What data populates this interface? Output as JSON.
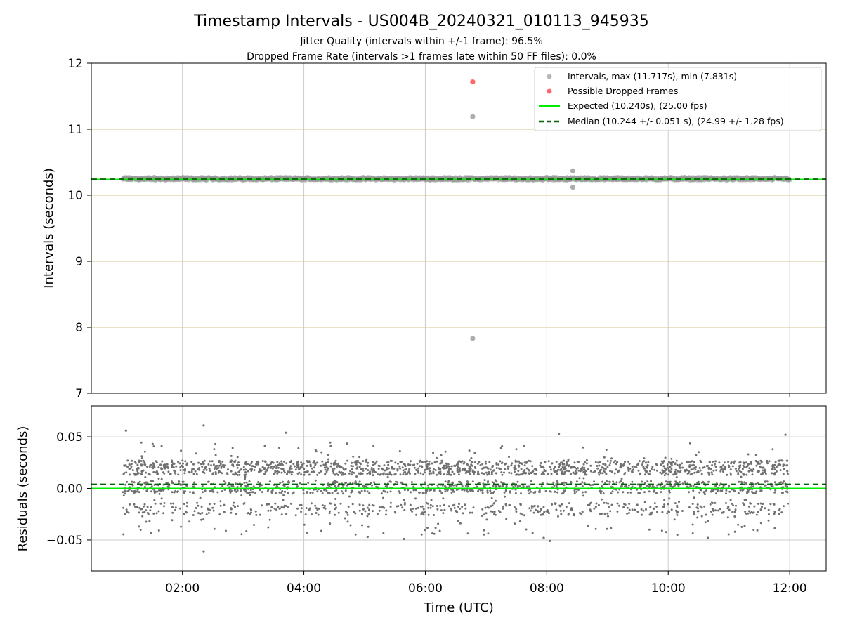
{
  "title": "Timestamp Intervals - US004B_20240321_010113_945935",
  "subtitle_lines": [
    "Jitter Quality (intervals within +/-1 frame): 96.5%",
    "Dropped Frame Rate (intervals >1 frames late within 50 FF files): 0.0%"
  ],
  "colors": {
    "interval_points": "#999999",
    "dropped_points": "#ff4d4d",
    "expected_line": "#00ee00",
    "median_line": "#006400",
    "residual_points": "#707070",
    "hgrid_top": "#d6c58a",
    "grid": "#cccccc"
  },
  "chart_data": [
    {
      "type": "scatter",
      "name": "intervals",
      "ylabel": "Intervals (seconds)",
      "ylim": [
        7,
        12
      ],
      "yticks": [
        "7",
        "8",
        "9",
        "10",
        "11",
        "12"
      ],
      "xlim_hours": [
        0.5,
        12.6
      ],
      "xticks_hours": [
        2,
        4,
        6,
        8,
        10,
        12
      ],
      "grid": true,
      "legend_position": "upper right",
      "legend": [
        "Intervals, max (11.717s), min (7.831s)",
        "Possible Dropped Frames",
        "Expected (10.240s), (25.00 fps)",
        "Median (10.244 +/- 0.051 s), (24.99 +/- 1.28 fps)"
      ],
      "expected_value": 10.24,
      "median_value": 10.244,
      "series": [
        {
          "name": "Intervals, max (11.717s), min (7.831s)",
          "time_range_hours": [
            1.02,
            12.0
          ],
          "typical_values": [
            10.24,
            10.245,
            10.26
          ],
          "outliers": [
            {
              "x_hours": 6.78,
              "y": 11.19
            },
            {
              "x_hours": 6.78,
              "y": 7.831
            },
            {
              "x_hours": 8.43,
              "y": 10.37
            },
            {
              "x_hours": 8.43,
              "y": 10.12
            }
          ]
        },
        {
          "name": "Possible Dropped Frames",
          "points": [
            {
              "x_hours": 6.78,
              "y": 11.717
            }
          ]
        }
      ]
    },
    {
      "type": "scatter",
      "name": "residuals",
      "xlabel": "Time (UTC)",
      "ylabel": "Residuals (seconds)",
      "ylim": [
        -0.08,
        0.08
      ],
      "yticks": [
        {
          "value": 0.05,
          "label": "0.05"
        },
        {
          "value": 0.0,
          "label": "0.00"
        },
        {
          "value": -0.05,
          "label": "−0.05"
        }
      ],
      "xlim_hours": [
        0.5,
        12.6
      ],
      "xticks": [
        {
          "hours": 2,
          "label": "02:00"
        },
        {
          "hours": 4,
          "label": "04:00"
        },
        {
          "hours": 6,
          "label": "06:00"
        },
        {
          "hours": 8,
          "label": "08:00"
        },
        {
          "hours": 10,
          "label": "10:00"
        },
        {
          "hours": 12,
          "label": "12:00"
        }
      ],
      "grid": true,
      "expected_residual": 0.0,
      "median_residual": 0.004,
      "residual_clusters": [
        0.02,
        0.001,
        -0.02
      ],
      "extreme_points": [
        {
          "x_hours": 2.35,
          "y": -0.061
        },
        {
          "x_hours": 2.35,
          "y": 0.061
        },
        {
          "x_hours": 1.07,
          "y": 0.056
        },
        {
          "x_hours": 8.05,
          "y": -0.051
        },
        {
          "x_hours": 5.05,
          "y": -0.047
        },
        {
          "x_hours": 5.65,
          "y": -0.049
        },
        {
          "x_hours": 7.95,
          "y": -0.048
        },
        {
          "x_hours": 10.15,
          "y": -0.045
        },
        {
          "x_hours": 10.65,
          "y": -0.048
        },
        {
          "x_hours": 11.1,
          "y": -0.042
        },
        {
          "x_hours": 8.2,
          "y": 0.053
        },
        {
          "x_hours": 3.7,
          "y": 0.054
        },
        {
          "x_hours": 11.93,
          "y": 0.052
        }
      ]
    }
  ]
}
